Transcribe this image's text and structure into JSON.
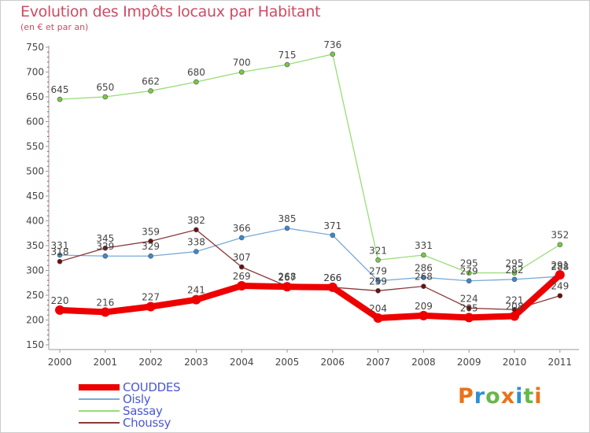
{
  "title": "Evolution des Impôts locaux par Habitant",
  "subtitle": "(en € et par an)",
  "logo": {
    "text": "Proxiti",
    "colors": [
      "#e8731a",
      "#2f8fd1",
      "#66b84a",
      "#e8731a",
      "#2f8fd1",
      "#66b84a",
      "#e8731a"
    ]
  },
  "chart_data": {
    "type": "line",
    "title": "Evolution des Impôts locaux par Habitant",
    "subtitle": "(en € et par an)",
    "xlabel": "",
    "ylabel": "",
    "x": [
      "2000",
      "2001",
      "2002",
      "2003",
      "2004",
      "2005",
      "2006",
      "2007",
      "2008",
      "2009",
      "2010",
      "2011"
    ],
    "yticks": [
      150,
      200,
      250,
      300,
      350,
      400,
      450,
      500,
      550,
      600,
      650,
      700,
      750
    ],
    "ylim": [
      150,
      750
    ],
    "grid": false,
    "legend_position": "bottom-left",
    "series": [
      {
        "name": "Sassay",
        "color": "#99dd77",
        "marker": "#77c844",
        "width": 1.3,
        "values": [
          645,
          650,
          662,
          680,
          700,
          715,
          736,
          321,
          331,
          295,
          295,
          352
        ],
        "labels": [
          "645",
          "650",
          "662",
          "680",
          "700",
          "715",
          "736",
          "321",
          "331",
          "295",
          "295",
          "352"
        ]
      },
      {
        "name": "Oisly",
        "color": "#7aaad8",
        "marker": "#3d88cc",
        "width": 1.3,
        "values": [
          331,
          329,
          329,
          338,
          366,
          385,
          371,
          279,
          286,
          279,
          282,
          288
        ],
        "labels": [
          "331",
          "329",
          "329",
          "338",
          "366",
          "385",
          "371",
          "279",
          "286",
          "279",
          "282",
          "288"
        ]
      },
      {
        "name": "Choussy",
        "color": "#8b3a3a",
        "marker": "#6a1010",
        "width": 1.3,
        "values": [
          318,
          345,
          359,
          382,
          307,
          268,
          266,
          259,
          268,
          224,
          221,
          249
        ],
        "labels": [
          "318",
          "345",
          "359",
          "382",
          "307",
          "268",
          "266",
          "259",
          "268",
          "224",
          "221",
          "249"
        ]
      },
      {
        "name": "COUDDES",
        "color": "#ee0000",
        "marker": "#ee0000",
        "width": 8,
        "values": [
          220,
          216,
          227,
          241,
          269,
          267,
          266,
          204,
          209,
          205,
          208,
          291
        ],
        "labels": [
          "220",
          "216",
          "227",
          "241",
          "269",
          "267",
          "266",
          "204",
          "209",
          "205",
          "208",
          "291"
        ]
      }
    ],
    "legend": [
      "COUDDES",
      "Oisly",
      "Sassay",
      "Choussy"
    ]
  }
}
